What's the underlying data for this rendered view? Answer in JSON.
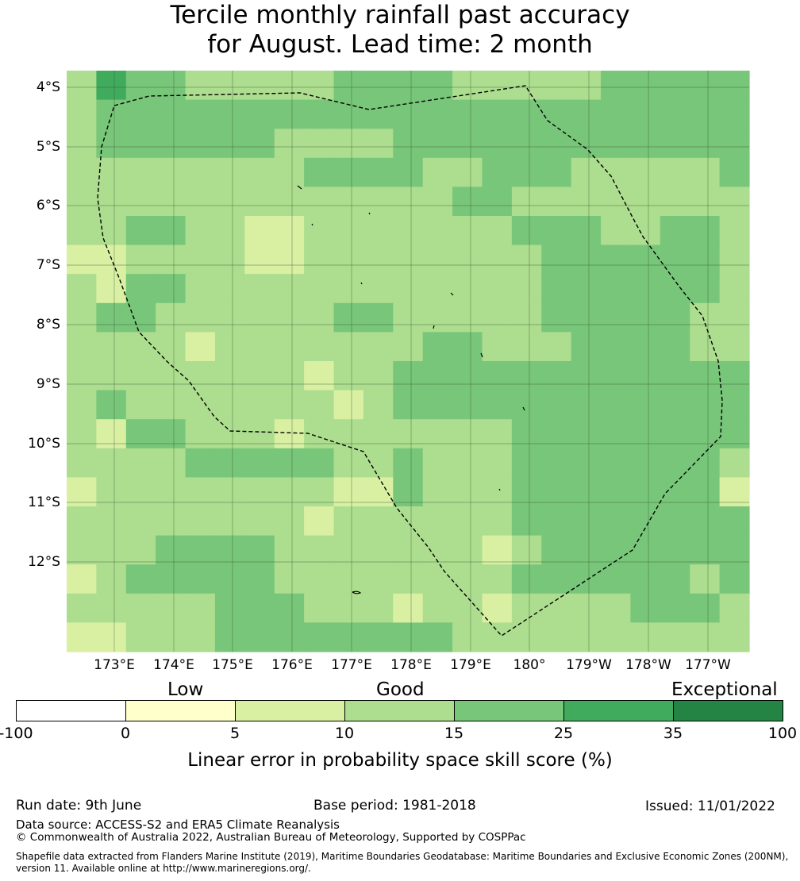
{
  "title": {
    "line1": "Tercile monthly rainfall past accuracy",
    "line2": "for August. Lead time: 2 month"
  },
  "map": {
    "lat_labels": [
      "4°S",
      "5°S",
      "6°S",
      "7°S",
      "8°S",
      "9°S",
      "10°S",
      "11°S",
      "12°S"
    ],
    "lon_labels": [
      "173°E",
      "174°E",
      "175°E",
      "176°E",
      "177°E",
      "178°E",
      "179°E",
      "180°",
      "179°W",
      "178°W",
      "177°W"
    ],
    "grid_rows_top_to_bottom": [
      "35443333344443333344444",
      "34444444444444444444444",
      "34444443333444444444444",
      "33333333444433444333334",
      "33333333333334433333333",
      "33443322333333344433443",
      "22333322333333334444443",
      "32443333333333334444443",
      "34433333344333334444433",
      "33332333333344333444433",
      "33333333233444444444444",
      "34333333323444444444444",
      "32443332333333344444444",
      "33334444433433344444443",
      "23333333322433344444442",
      "33333333233333344444444",
      "33344443333333234444444",
      "23444443333333344444434",
      "33333444333233233334443",
      "22333444444443333333333"
    ],
    "colors": {
      "1": "#ffffcc",
      "2": "#d9f0a3",
      "3": "#addd8e",
      "4": "#78c679",
      "5": "#41ab5d",
      "6": "#238443"
    }
  },
  "legend": {
    "categories": [
      "Low",
      "Good",
      "Exceptional"
    ],
    "ticks": [
      "-100",
      "0",
      "5",
      "10",
      "15",
      "25",
      "35",
      "100"
    ],
    "colors": [
      "#ffffff",
      "#ffffcc",
      "#d9f0a3",
      "#addd8e",
      "#78c679",
      "#41ab5d",
      "#238443"
    ],
    "title": "Linear error in probability space skill score (%)"
  },
  "footer": {
    "run_date": "Run date: 9th June",
    "base_period": "Base period: 1981-2018",
    "issued": "Issued: 11/01/2022",
    "data_source": "Data source: ACCESS-S2 and ERA5 Climate Reanalysis",
    "copyright": "© Commonwealth of Australia 2022, Australian Bureau of Meteorology, Supported by COSPPac",
    "shapefile_1": "Shapefile data extracted from Flanders Marine Institute (2019), Maritime Boundaries Geodatabase: Maritime Boundaries and Exclusive Economic Zones (200NM),",
    "shapefile_2": "version 11. Available online at http://www.marineregions.org/."
  }
}
